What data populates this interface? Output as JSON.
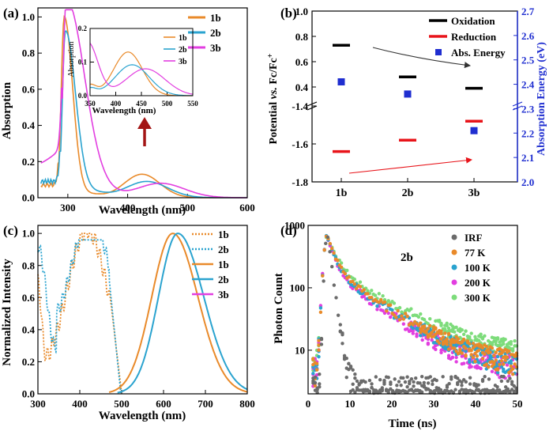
{
  "panels": {
    "a": {
      "label": "(a)",
      "type": "line",
      "xlabel": "Wavelength (nm)",
      "ylabel": "Absorption",
      "xlim": [
        250,
        600
      ],
      "ylim": [
        0.0,
        1.05
      ],
      "xticks": [
        "300",
        "400",
        "500",
        "600"
      ],
      "yticks": [
        "0.0",
        "0.2",
        "0.4",
        "0.6",
        "0.8",
        "1.0"
      ],
      "legend": [
        "1b",
        "2b",
        "3b"
      ],
      "series": [
        {
          "name": "1b",
          "color": "#e98a2a",
          "peak_nm": 294,
          "peak": 1.0,
          "band2_nm": 424,
          "band2": 0.13
        },
        {
          "name": "2b",
          "color": "#2aa3cf",
          "peak_nm": 296,
          "peak": 0.92,
          "band2_nm": 430,
          "band2": 0.09
        },
        {
          "name": "3b",
          "color": "#e23ee0",
          "peak_nm": 297,
          "peak": 1.02,
          "band2_nm": 455,
          "band2": 0.08
        }
      ],
      "inset": {
        "xlabel": "Wavelength (nm)",
        "ylabel": "Absorption",
        "xlim": [
          350,
          550
        ],
        "ylim": [
          0.0,
          0.2
        ],
        "xticks": [
          "350",
          "400",
          "450",
          "500",
          "550"
        ],
        "yticks": [
          "0.0",
          "0.1",
          "0.2"
        ],
        "legend": [
          "1b",
          "2b",
          "3b"
        ]
      }
    },
    "b": {
      "label": "(b)",
      "type": "scatter",
      "ylabel_left_parts": [
        "Potential ",
        "vs.",
        " Fc/Fc",
        "+"
      ],
      "ylabel_right": "Absorption Energy (eV)",
      "categories": [
        "1b",
        "2b",
        "3b"
      ],
      "left_ticks_top": [
        "1.0",
        "0.8",
        "0.6",
        "0.4"
      ],
      "left_ticks_bottom": [
        "-1.4",
        "-1.6",
        "-1.8"
      ],
      "right_ticks": [
        "2.0",
        "2.1",
        "2.2",
        "2.3",
        "2.4",
        "2.5",
        "2.6",
        "2.7"
      ],
      "legend": [
        "Oxidation",
        "Reduction",
        "Abs. Energy"
      ],
      "oxidation": [
        0.73,
        0.48,
        0.39
      ],
      "reduction": [
        -1.64,
        -1.58,
        -1.48
      ],
      "abs_energy": [
        2.41,
        2.36,
        2.21
      ],
      "colors": {
        "oxidation": "#000000",
        "reduction": "#e8141a",
        "abs_energy": "#1f2ed0",
        "right_axis": "#1f2ed0"
      }
    },
    "c": {
      "label": "(c)",
      "type": "line",
      "xlabel": "Wavelength (nm)",
      "ylabel": "Normalized Intensity",
      "xlim": [
        300,
        800
      ],
      "ylim": [
        0.0,
        1.05
      ],
      "xticks": [
        "300",
        "400",
        "500",
        "600",
        "700",
        "800"
      ],
      "yticks": [
        "0.0",
        "0.2",
        "0.4",
        "0.6",
        "0.8",
        "1.0"
      ],
      "legend": [
        {
          "name": "1b",
          "style": "dotted",
          "color": "#e98a2a"
        },
        {
          "name": "2b",
          "style": "dotted",
          "color": "#2aa3cf"
        },
        {
          "name": "1b",
          "style": "solid",
          "color": "#e98a2a"
        },
        {
          "name": "2b",
          "style": "solid",
          "color": "#2aa3cf"
        },
        {
          "name": "3b",
          "style": "solid",
          "color": "#e23ee0"
        }
      ],
      "emission_peaks_nm": {
        "1b": 622,
        "2b": 634
      }
    },
    "d": {
      "label": "(d)",
      "type": "scatter",
      "sample": "2b",
      "xlabel": "Time (ns)",
      "ylabel": "Photon Count",
      "xlim": [
        0,
        50
      ],
      "ylim_log": [
        2,
        1000
      ],
      "xticks": [
        "0",
        "10",
        "20",
        "30",
        "40",
        "50"
      ],
      "yticks": [
        "10",
        "100",
        "1000"
      ],
      "legend": [
        "IRF",
        "77 K",
        "100 K",
        "200 K",
        "300 K"
      ],
      "colors": {
        "IRF": "#6b6b6b",
        "77 K": "#e98a2a",
        "100 K": "#2aa3cf",
        "200 K": "#e23ee0",
        "300 K": "#7ddc7b"
      },
      "decay_tau_ns": {
        "IRF": 0.9,
        "77 K": 4.8,
        "100 K": 4.6,
        "200 K": 4.2,
        "300 K": 5.6
      }
    }
  }
}
